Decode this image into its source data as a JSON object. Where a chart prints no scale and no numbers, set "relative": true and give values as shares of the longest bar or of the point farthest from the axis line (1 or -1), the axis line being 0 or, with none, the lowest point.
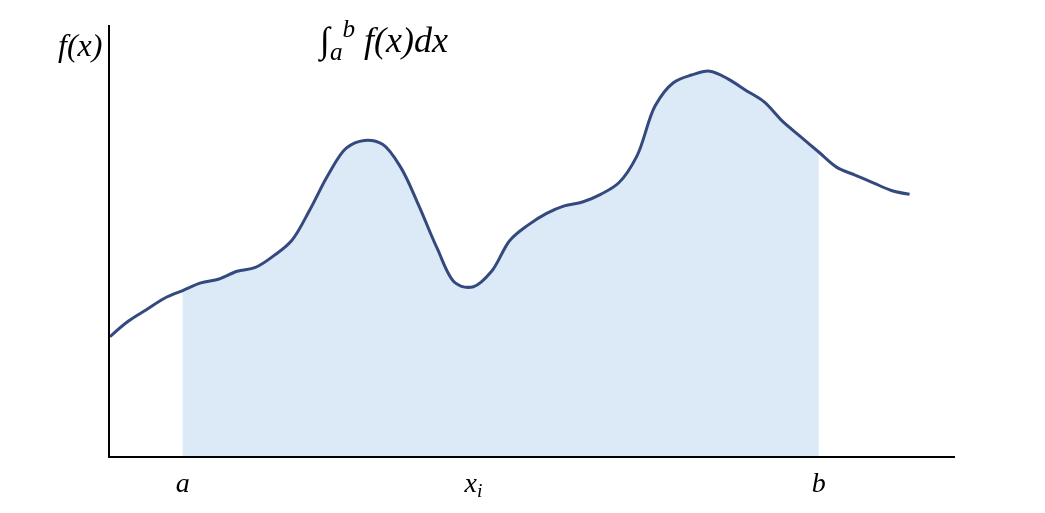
{
  "chart_data": {
    "type": "line",
    "relative": true,
    "title": "∫$_{a}$$^{b}$ f(x)dx",
    "ylabel": "f(x)",
    "categories": [
      null,
      null,
      null,
      null,
      "a",
      null,
      null,
      null,
      null,
      null,
      null,
      null,
      null,
      null,
      null,
      null,
      null,
      null,
      null,
      null,
      "x$_{i}$",
      null,
      null,
      null,
      null,
      null,
      null,
      null,
      null,
      null,
      null,
      null,
      null,
      null,
      null,
      null,
      null,
      null,
      null,
      "b",
      null,
      null,
      null,
      null,
      null
    ],
    "series": [
      {
        "type": "area",
        "color": "#dce9f7",
        "values": [
          null,
          null,
          null,
          null,
          0.43,
          0.45,
          0.46,
          0.48,
          0.49,
          0.52,
          0.56,
          0.64,
          0.73,
          0.8,
          0.82,
          0.81,
          0.75,
          0.65,
          0.54,
          0.45,
          0.44,
          0.48,
          0.56,
          0.6,
          0.63,
          0.65,
          0.66,
          0.68,
          0.71,
          0.78,
          0.91,
          0.97,
          0.99,
          1.0,
          0.98,
          0.95,
          0.92,
          0.87,
          0.83,
          0.79,
          null,
          null,
          null,
          null,
          null
        ]
      },
      {
        "color": "#34497d",
        "values": [
          0.31,
          0.35,
          0.38,
          0.41,
          0.43,
          0.45,
          0.46,
          0.48,
          0.49,
          0.52,
          0.56,
          0.64,
          0.73,
          0.8,
          0.82,
          0.81,
          0.75,
          0.65,
          0.54,
          0.45,
          0.44,
          0.48,
          0.56,
          0.6,
          0.63,
          0.65,
          0.66,
          0.68,
          0.71,
          0.78,
          0.91,
          0.97,
          0.99,
          1.0,
          0.98,
          0.95,
          0.92,
          0.87,
          0.83,
          0.79,
          0.75,
          0.73,
          0.71,
          0.69,
          0.68
        ]
      }
    ],
    "marker": "none"
  }
}
